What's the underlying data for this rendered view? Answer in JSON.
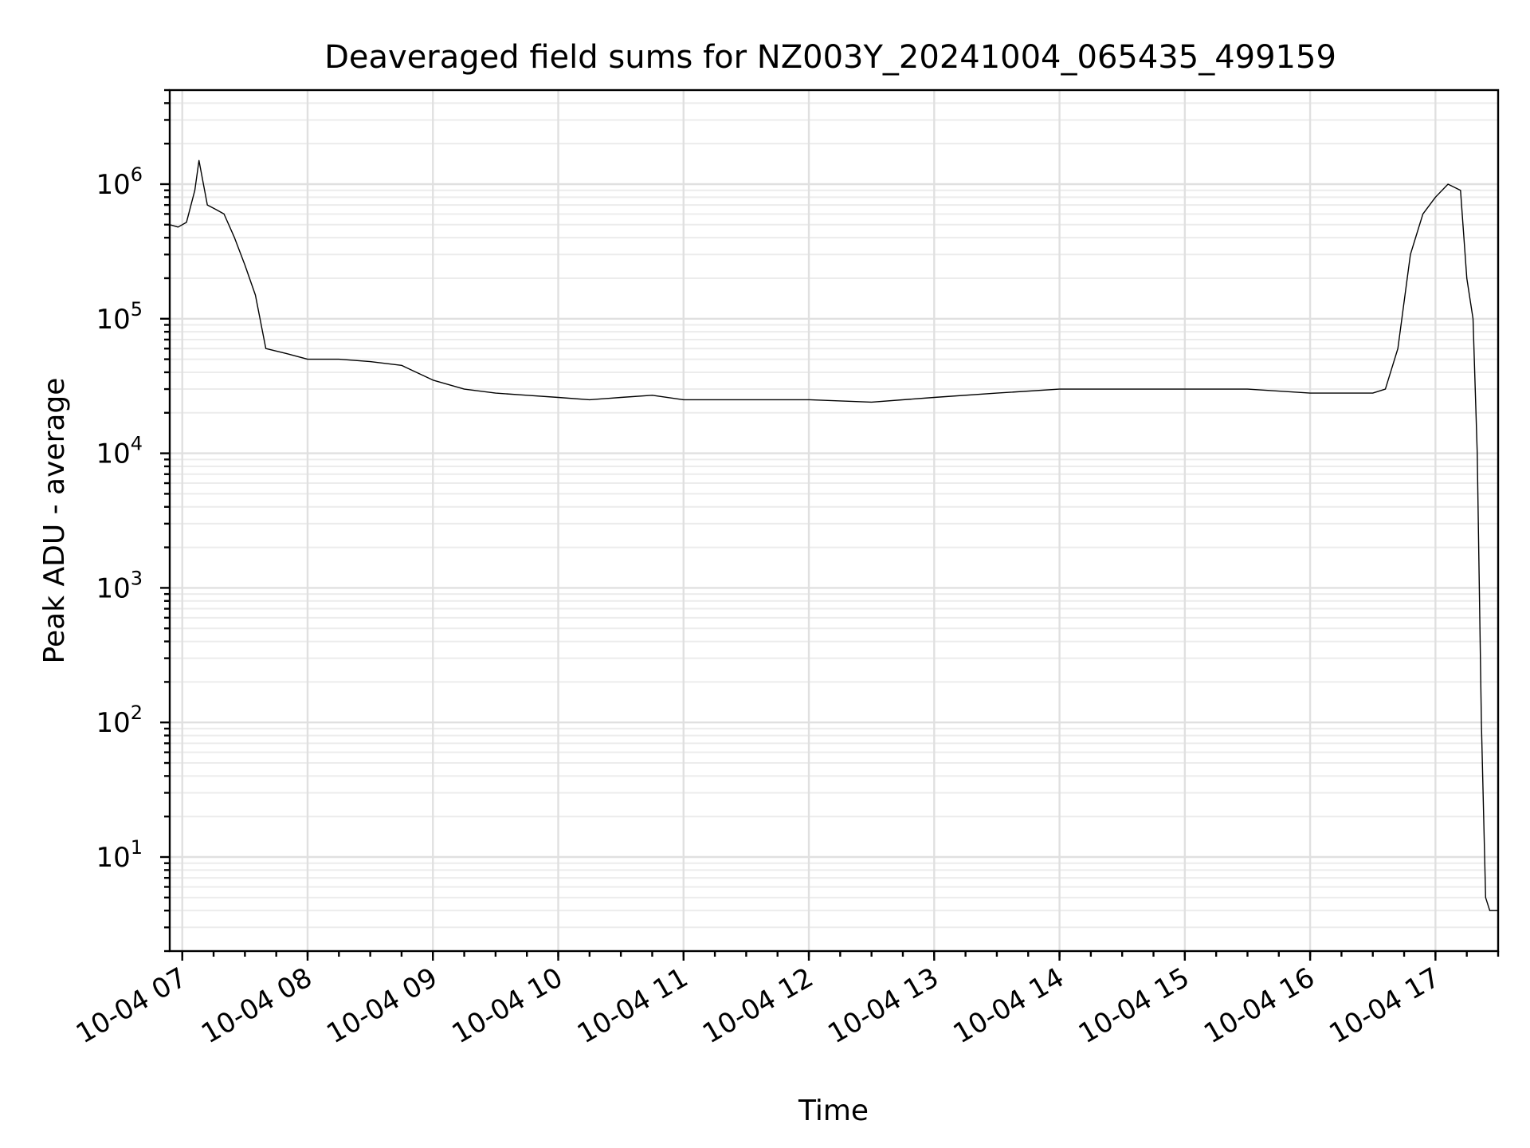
{
  "chart_data": {
    "type": "line",
    "title": "Deaveraged field sums for NZ003Y_20241004_065435_499159",
    "xlabel": "Time",
    "ylabel": "Peak ADU - average",
    "yscale": "log",
    "ylim": [
      2,
      5000000
    ],
    "y_ticks": [
      {
        "base": "10",
        "exp": "1",
        "value": 10
      },
      {
        "base": "10",
        "exp": "2",
        "value": 100
      },
      {
        "base": "10",
        "exp": "3",
        "value": 1000
      },
      {
        "base": "10",
        "exp": "4",
        "value": 10000
      },
      {
        "base": "10",
        "exp": "5",
        "value": 100000
      },
      {
        "base": "10",
        "exp": "6",
        "value": 1000000
      }
    ],
    "xlim": [
      "2024-10-04 06:54",
      "2024-10-04 17:30"
    ],
    "x_ticks": [
      {
        "label": "10-04 07",
        "value": "2024-10-04 07:00"
      },
      {
        "label": "10-04 08",
        "value": "2024-10-04 08:00"
      },
      {
        "label": "10-04 09",
        "value": "2024-10-04 09:00"
      },
      {
        "label": "10-04 10",
        "value": "2024-10-04 10:00"
      },
      {
        "label": "10-04 11",
        "value": "2024-10-04 11:00"
      },
      {
        "label": "10-04 12",
        "value": "2024-10-04 12:00"
      },
      {
        "label": "10-04 13",
        "value": "2024-10-04 13:00"
      },
      {
        "label": "10-04 14",
        "value": "2024-10-04 14:00"
      },
      {
        "label": "10-04 15",
        "value": "2024-10-04 15:00"
      },
      {
        "label": "10-04 16",
        "value": "2024-10-04 16:00"
      },
      {
        "label": "10-04 17",
        "value": "2024-10-04 17:00"
      }
    ],
    "grid": true,
    "series": [
      {
        "color": "#000000",
        "x": [
          "2024-10-04 06:54",
          "2024-10-04 06:58",
          "2024-10-04 07:02",
          "2024-10-04 07:06",
          "2024-10-04 07:08",
          "2024-10-04 07:12",
          "2024-10-04 07:16",
          "2024-10-04 07:20",
          "2024-10-04 07:25",
          "2024-10-04 07:30",
          "2024-10-04 07:35",
          "2024-10-04 07:40",
          "2024-10-04 07:50",
          "2024-10-04 08:00",
          "2024-10-04 08:15",
          "2024-10-04 08:30",
          "2024-10-04 08:45",
          "2024-10-04 09:00",
          "2024-10-04 09:15",
          "2024-10-04 09:30",
          "2024-10-04 09:45",
          "2024-10-04 10:00",
          "2024-10-04 10:15",
          "2024-10-04 10:30",
          "2024-10-04 10:45",
          "2024-10-04 11:00",
          "2024-10-04 11:30",
          "2024-10-04 12:00",
          "2024-10-04 12:30",
          "2024-10-04 13:00",
          "2024-10-04 13:30",
          "2024-10-04 14:00",
          "2024-10-04 14:30",
          "2024-10-04 15:00",
          "2024-10-04 15:30",
          "2024-10-04 16:00",
          "2024-10-04 16:30",
          "2024-10-04 16:36",
          "2024-10-04 16:42",
          "2024-10-04 16:48",
          "2024-10-04 16:54",
          "2024-10-04 17:00",
          "2024-10-04 17:06",
          "2024-10-04 17:12",
          "2024-10-04 17:15",
          "2024-10-04 17:18",
          "2024-10-04 17:20",
          "2024-10-04 17:22",
          "2024-10-04 17:24",
          "2024-10-04 17:26",
          "2024-10-04 17:30"
        ],
        "y": [
          500000,
          480000,
          520000,
          900000,
          1500000,
          700000,
          650000,
          600000,
          400000,
          250000,
          150000,
          60000,
          55000,
          50000,
          50000,
          48000,
          45000,
          35000,
          30000,
          28000,
          27000,
          26000,
          25000,
          26000,
          27000,
          25000,
          25000,
          25000,
          24000,
          26000,
          28000,
          30000,
          30000,
          30000,
          30000,
          28000,
          28000,
          30000,
          60000,
          300000,
          600000,
          800000,
          1000000,
          900000,
          200000,
          100000,
          10000,
          100,
          5,
          4,
          4
        ]
      }
    ]
  }
}
